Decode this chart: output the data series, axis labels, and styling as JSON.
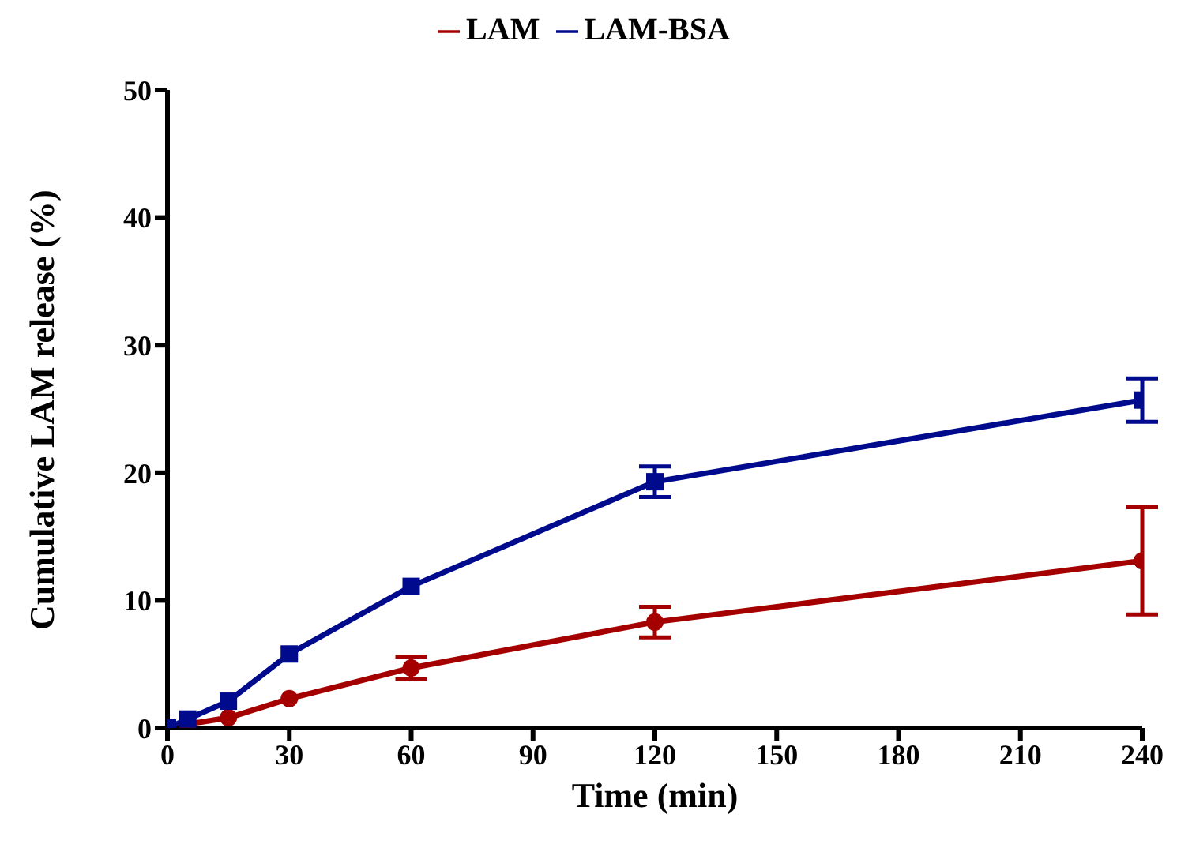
{
  "chart_data": {
    "type": "line",
    "xlabel": "Time (min)",
    "ylabel": "Cumulative LAM release (%)",
    "x": [
      0,
      5,
      15,
      30,
      60,
      120,
      240
    ],
    "series": [
      {
        "name": "LAM",
        "color": "#a50000",
        "marker": "circle",
        "values": [
          0,
          0.3,
          0.8,
          2.3,
          4.7,
          8.3,
          13.1
        ],
        "errors": [
          null,
          null,
          null,
          null,
          0.9,
          1.2,
          4.2
        ]
      },
      {
        "name": "LAM-BSA",
        "color": "#000a8c",
        "marker": "square",
        "values": [
          0,
          0.7,
          2.1,
          5.8,
          11.1,
          19.3,
          25.7
        ],
        "errors": [
          null,
          null,
          null,
          null,
          null,
          1.2,
          1.7
        ]
      }
    ],
    "xlim": [
      0,
      240
    ],
    "xticks": [
      0,
      30,
      60,
      90,
      120,
      150,
      180,
      210,
      240
    ],
    "ylim": [
      0,
      50
    ],
    "yticks": [
      0,
      10,
      20,
      30,
      40,
      50
    ],
    "legend": "top",
    "grid": false,
    "line_style": "solid"
  }
}
